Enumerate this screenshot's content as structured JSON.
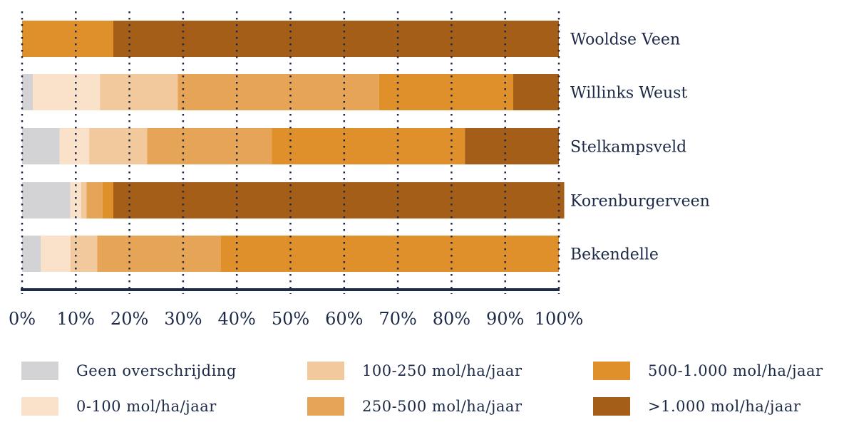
{
  "chart_data": {
    "type": "bar",
    "orientation": "horizontal",
    "stacked": "percent",
    "categories": [
      "Wooldse Veen",
      "Willinks Weust",
      "Stelkampsveld",
      "Korenburgerveen",
      "Bekendelle"
    ],
    "series": [
      {
        "name": "Geen overschrijding",
        "color": "#d3d3d6",
        "values": [
          0,
          2,
          7,
          9,
          3.5
        ]
      },
      {
        "name": "0-100 mol/ha/jaar",
        "color": "#f9e1ca",
        "values": [
          0,
          12.5,
          5.5,
          2,
          5.5
        ]
      },
      {
        "name": "100-250 mol/ha/jaar",
        "color": "#f2c99c",
        "values": [
          0,
          14.5,
          10.8,
          1,
          5
        ]
      },
      {
        "name": "250-500 mol/ha/jaar",
        "color": "#e6a556",
        "values": [
          0,
          37.5,
          23.2,
          3,
          23
        ]
      },
      {
        "name": "500-1.000 mol/ha/jaar",
        "color": "#e0902a",
        "values": [
          17,
          25,
          36,
          2,
          63
        ]
      },
      {
        "name": ">1.000 mol/ha/jaar",
        "color": "#a55e18",
        "values": [
          83,
          8.5,
          17.5,
          84,
          0
        ]
      }
    ],
    "xticks": [
      "0%",
      "10%",
      "20%",
      "30%",
      "40%",
      "50%",
      "60%",
      "70%",
      "80%",
      "90%",
      "100%"
    ],
    "xlim": [
      0,
      100
    ],
    "grid": "vertical dotted",
    "legend_position": "bottom",
    "title": "",
    "xlabel": "",
    "ylabel": ""
  }
}
